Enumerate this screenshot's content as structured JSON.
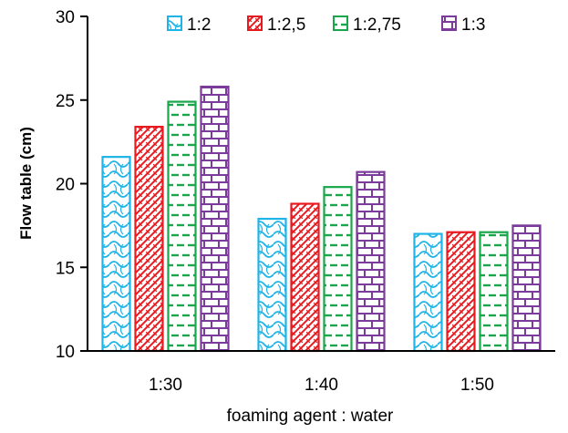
{
  "chart_data": {
    "type": "bar",
    "categories": [
      "1:30",
      "1:40",
      "1:50"
    ],
    "series": [
      {
        "name": "1:2",
        "values": [
          21.6,
          17.9,
          17.0
        ],
        "color": "#1fb4e8",
        "pattern": "wave"
      },
      {
        "name": "1:2,5",
        "values": [
          23.4,
          18.8,
          17.1
        ],
        "color": "#e8191f",
        "pattern": "herringbone"
      },
      {
        "name": "1:2,75",
        "values": [
          24.9,
          19.8,
          17.1
        ],
        "color": "#1aa64a",
        "pattern": "dashes"
      },
      {
        "name": "1:3",
        "values": [
          25.8,
          20.7,
          17.5
        ],
        "color": "#7a3b9a",
        "pattern": "bricks"
      }
    ],
    "xlabel": "foaming agent : water",
    "ylabel": "Flow table (cm)",
    "ylim": [
      10,
      30
    ],
    "yticks": [
      10,
      15,
      20,
      25,
      30
    ],
    "legend_position": "top",
    "grid": false
  }
}
